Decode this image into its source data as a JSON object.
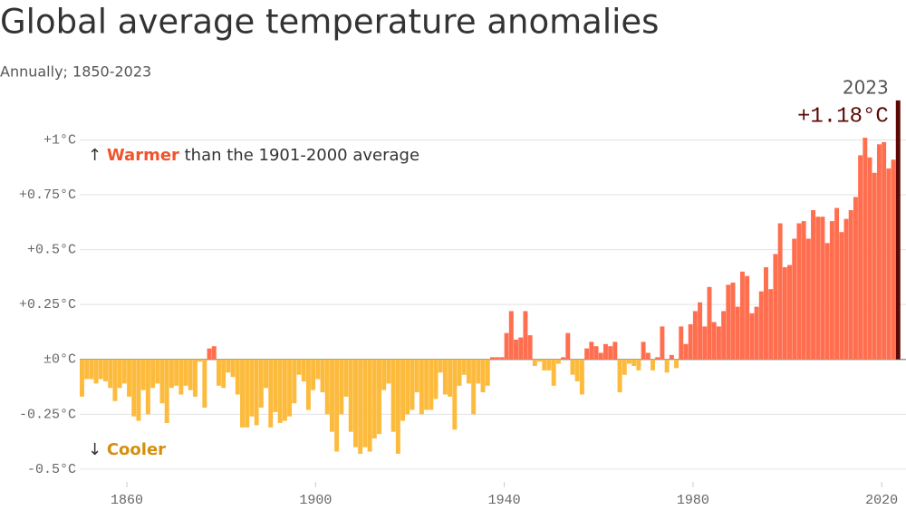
{
  "chart_data": {
    "type": "bar",
    "title": "Global average temperature anomalies",
    "subtitle": "Annually; 1850-2023",
    "x": [
      1850,
      1851,
      1852,
      1853,
      1854,
      1855,
      1856,
      1857,
      1858,
      1859,
      1860,
      1861,
      1862,
      1863,
      1864,
      1865,
      1866,
      1867,
      1868,
      1869,
      1870,
      1871,
      1872,
      1873,
      1874,
      1875,
      1876,
      1877,
      1878,
      1879,
      1880,
      1881,
      1882,
      1883,
      1884,
      1885,
      1886,
      1887,
      1888,
      1889,
      1890,
      1891,
      1892,
      1893,
      1894,
      1895,
      1896,
      1897,
      1898,
      1899,
      1900,
      1901,
      1902,
      1903,
      1904,
      1905,
      1906,
      1907,
      1908,
      1909,
      1910,
      1911,
      1912,
      1913,
      1914,
      1915,
      1916,
      1917,
      1918,
      1919,
      1920,
      1921,
      1922,
      1923,
      1924,
      1925,
      1926,
      1927,
      1928,
      1929,
      1930,
      1931,
      1932,
      1933,
      1934,
      1935,
      1936,
      1937,
      1938,
      1939,
      1940,
      1941,
      1942,
      1943,
      1944,
      1945,
      1946,
      1947,
      1948,
      1949,
      1950,
      1951,
      1952,
      1953,
      1954,
      1955,
      1956,
      1957,
      1958,
      1959,
      1960,
      1961,
      1962,
      1963,
      1964,
      1965,
      1966,
      1967,
      1968,
      1969,
      1970,
      1971,
      1972,
      1973,
      1974,
      1975,
      1976,
      1977,
      1978,
      1979,
      1980,
      1981,
      1982,
      1983,
      1984,
      1985,
      1986,
      1987,
      1988,
      1989,
      1990,
      1991,
      1992,
      1993,
      1994,
      1995,
      1996,
      1997,
      1998,
      1999,
      2000,
      2001,
      2002,
      2003,
      2004,
      2005,
      2006,
      2007,
      2008,
      2009,
      2010,
      2011,
      2012,
      2013,
      2014,
      2015,
      2016,
      2017,
      2018,
      2019,
      2020,
      2021,
      2022,
      2023
    ],
    "values": [
      -0.17,
      -0.09,
      -0.09,
      -0.11,
      -0.09,
      -0.1,
      -0.13,
      -0.19,
      -0.13,
      -0.11,
      -0.17,
      -0.26,
      -0.28,
      -0.14,
      -0.25,
      -0.13,
      -0.11,
      -0.2,
      -0.29,
      -0.13,
      -0.12,
      -0.16,
      -0.12,
      -0.14,
      -0.17,
      -0.01,
      -0.22,
      0.05,
      0.06,
      -0.12,
      -0.13,
      -0.06,
      -0.08,
      -0.16,
      -0.31,
      -0.31,
      -0.26,
      -0.3,
      -0.22,
      -0.13,
      -0.31,
      -0.24,
      -0.29,
      -0.28,
      -0.26,
      -0.2,
      -0.07,
      -0.1,
      -0.23,
      -0.14,
      -0.09,
      -0.15,
      -0.25,
      -0.33,
      -0.42,
      -0.25,
      -0.17,
      -0.33,
      -0.4,
      -0.43,
      -0.4,
      -0.42,
      -0.36,
      -0.34,
      -0.14,
      -0.11,
      -0.33,
      -0.43,
      -0.28,
      -0.25,
      -0.23,
      -0.15,
      -0.25,
      -0.23,
      -0.23,
      -0.18,
      -0.06,
      -0.16,
      -0.17,
      -0.32,
      -0.12,
      -0.07,
      -0.11,
      -0.25,
      -0.11,
      -0.15,
      -0.12,
      0.01,
      0.01,
      0.01,
      0.12,
      0.22,
      0.09,
      0.1,
      0.22,
      0.11,
      -0.03,
      -0.01,
      -0.05,
      -0.05,
      -0.12,
      -0.02,
      0.01,
      0.12,
      -0.07,
      -0.1,
      -0.16,
      0.05,
      0.08,
      0.06,
      0.03,
      0.07,
      0.06,
      0.08,
      -0.15,
      -0.07,
      -0.02,
      -0.03,
      -0.05,
      0.08,
      0.03,
      -0.05,
      0.01,
      0.15,
      -0.06,
      0.02,
      -0.04,
      0.15,
      0.07,
      0.16,
      0.22,
      0.26,
      0.15,
      0.33,
      0.17,
      0.15,
      0.22,
      0.34,
      0.35,
      0.24,
      0.4,
      0.38,
      0.21,
      0.24,
      0.31,
      0.42,
      0.32,
      0.48,
      0.62,
      0.42,
      0.43,
      0.55,
      0.62,
      0.63,
      0.55,
      0.68,
      0.65,
      0.65,
      0.53,
      0.63,
      0.69,
      0.58,
      0.64,
      0.68,
      0.74,
      0.93,
      1.01,
      0.92,
      0.85,
      0.98,
      0.99,
      0.87,
      0.91,
      1.18
    ],
    "positive_color": "#ff6f4f",
    "negative_color": "#fdbb3e",
    "highlight": {
      "x": 2023,
      "value_label": "+1.18°C",
      "color": "#5c0905"
    },
    "xlim": [
      1850,
      2024
    ],
    "xticks": [
      1860,
      1900,
      1940,
      1980,
      2020
    ],
    "ylim": [
      -0.55,
      1.2
    ],
    "yticks": [
      {
        "value": 1,
        "label": "+1°C"
      },
      {
        "value": 0.75,
        "label": "+0.75°C"
      },
      {
        "value": 0.5,
        "label": "+0.5°C"
      },
      {
        "value": 0.25,
        "label": "+0.25°C"
      },
      {
        "value": 0,
        "label": "±0°C"
      },
      {
        "value": -0.25,
        "label": "-0.25°C"
      },
      {
        "value": -0.5,
        "label": "-0.5°C"
      }
    ],
    "grid": true,
    "annotations": {
      "warmer": {
        "arrow": "↑",
        "word": "Warmer",
        "rest": " than the 1901-2000 average",
        "color": "#f0542d"
      },
      "cooler": {
        "arrow": "↓",
        "word": "Cooler",
        "color": "#d4900d"
      }
    }
  }
}
